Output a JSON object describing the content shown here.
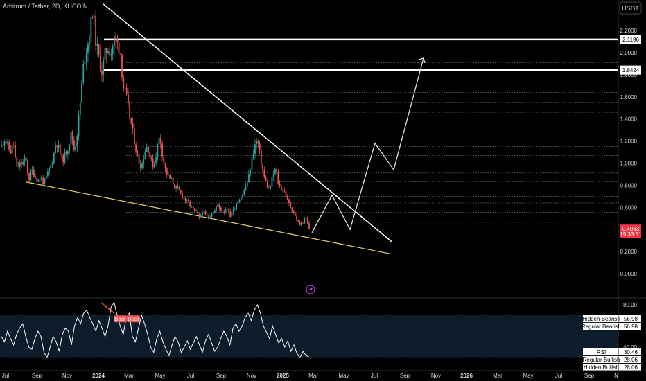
{
  "header": {
    "title": "Arbitrum / Tether, 2D, KUCOIN",
    "currency_button": "USDT"
  },
  "chart_data": {
    "type": "candlestick",
    "symbol": "Arbitrum / Tether",
    "interval": "2D",
    "exchange": "KUCOIN",
    "x_ticks": [
      "Jul",
      "Sep",
      "Nov",
      "2024",
      "Mar",
      "May",
      "Jul",
      "Sep",
      "Nov",
      "2025",
      "Mar",
      "May",
      "Jul",
      "Sep",
      "Nov",
      "2026",
      "Mar",
      "May",
      "Jul",
      "Sep",
      "N"
    ],
    "price_axis_ticks": [
      "2.2000",
      "2.0000",
      "1.8000",
      "1.6000",
      "1.4000",
      "1.2000",
      "1.0000",
      "0.8000",
      "0.6000",
      "0.4000",
      "0.2000",
      "0.0000"
    ],
    "price_path": [
      1.15,
      1.22,
      1.16,
      1.1,
      1.18,
      0.95,
      0.99,
      1.0,
      1.04,
      0.85,
      0.94,
      0.88,
      0.84,
      0.87,
      0.82,
      0.89,
      0.96,
      1.05,
      1.2,
      1.12,
      1.02,
      1.08,
      1.15,
      1.28,
      1.1,
      1.3,
      1.58,
      1.9,
      2.05,
      2.15,
      2.4,
      2.1,
      1.95,
      1.83,
      1.98,
      2.05,
      2.0,
      2.12,
      2.08,
      2.02,
      1.7,
      1.6,
      1.44,
      1.3,
      1.15,
      1.02,
      0.97,
      1.1,
      1.17,
      1.03,
      0.97,
      1.12,
      1.25,
      1.05,
      0.92,
      0.87,
      0.84,
      0.78,
      0.76,
      0.72,
      0.68,
      0.65,
      0.62,
      0.58,
      0.55,
      0.5,
      0.57,
      0.52,
      0.51,
      0.55,
      0.57,
      0.62,
      0.58,
      0.56,
      0.61,
      0.52,
      0.57,
      0.63,
      0.68,
      0.7,
      0.78,
      0.85,
      1.0,
      1.15,
      1.21,
      1.05,
      0.9,
      0.81,
      0.75,
      0.88,
      0.95,
      0.8,
      0.77,
      0.74,
      0.65,
      0.6,
      0.55,
      0.48,
      0.44,
      0.47,
      0.5,
      0.4063
    ],
    "current_price": "0.4063",
    "countdown": "19:33:51",
    "horizontal_levels": [
      {
        "price": 2.1196,
        "label": "2.1196",
        "style": "bold"
      },
      {
        "price": 1.8424,
        "label": "1.8424",
        "style": "bold"
      },
      {
        "price": 1.91,
        "style": "dotted"
      },
      {
        "price": 1.79,
        "style": "dotted"
      },
      {
        "price": 1.64,
        "style": "dotted"
      },
      {
        "price": 1.55,
        "style": "dotted"
      },
      {
        "price": 1.46,
        "style": "dotted"
      },
      {
        "price": 1.3,
        "style": "dotted"
      },
      {
        "price": 1.15,
        "style": "dotted"
      },
      {
        "price": 1.07,
        "style": "dotted"
      },
      {
        "price": 0.91,
        "style": "dotted"
      },
      {
        "price": 0.83,
        "style": "dotted"
      },
      {
        "price": 0.7,
        "style": "dotted"
      },
      {
        "price": 0.64,
        "style": "dotted"
      },
      {
        "price": 0.555,
        "style": "dotted"
      },
      {
        "price": 0.465,
        "style": "dotted"
      }
    ],
    "upper_trendline": {
      "from_price": 2.44,
      "to_price": 0.29,
      "color": "#ffffff"
    },
    "lower_trendline": {
      "from_price": 0.83,
      "to_price": 0.18,
      "color": "#e8d36a"
    },
    "projection_path": [
      0.37,
      0.71,
      0.4,
      1.18,
      0.94,
      1.95
    ],
    "indicator": {
      "name": "RSI",
      "ticks": [
        "80.00",
        "60.00",
        "40.00"
      ],
      "value": "30.46",
      "band_upper": 70,
      "band_lower": 30,
      "values": [
        50,
        45,
        55,
        48,
        42,
        52,
        58,
        62,
        50,
        40,
        38,
        48,
        55,
        50,
        35,
        30,
        40,
        50,
        45,
        36,
        52,
        58,
        55,
        42,
        60,
        68,
        62,
        72,
        75,
        68,
        62,
        55,
        65,
        58,
        50,
        60,
        78,
        82,
        70,
        60,
        52,
        68,
        72,
        50,
        45,
        58,
        70,
        62,
        52,
        40,
        35,
        48,
        55,
        45,
        38,
        32,
        42,
        50,
        45,
        35,
        40,
        46,
        38,
        44,
        50,
        42,
        35,
        46,
        52,
        44,
        36,
        40,
        48,
        55,
        50,
        42,
        58,
        62,
        55,
        60,
        68,
        72,
        65,
        75,
        80,
        72,
        60,
        54,
        48,
        60,
        52,
        44,
        48,
        40,
        46,
        36,
        42,
        34,
        30,
        36,
        32,
        30.46
      ],
      "labels": [
        {
          "name": "Hidden Bearish",
          "value": "56.98"
        },
        {
          "name": "Regular Bearish",
          "value": "56.98"
        },
        {
          "name": "RSI",
          "value": "30.46"
        },
        {
          "name": "Regular Bullish",
          "value": "28.06"
        },
        {
          "name": "Hidden Bullish",
          "value": "28.06"
        }
      ],
      "divergence_tags": [
        "Bear",
        "Bear"
      ]
    }
  },
  "colors": {
    "up": "#26a69a",
    "down": "#ef5350",
    "background": "#000000",
    "text": "#d1d4dc",
    "rsi_band": "#0c1c2a",
    "current_price_label": "#f23645"
  }
}
